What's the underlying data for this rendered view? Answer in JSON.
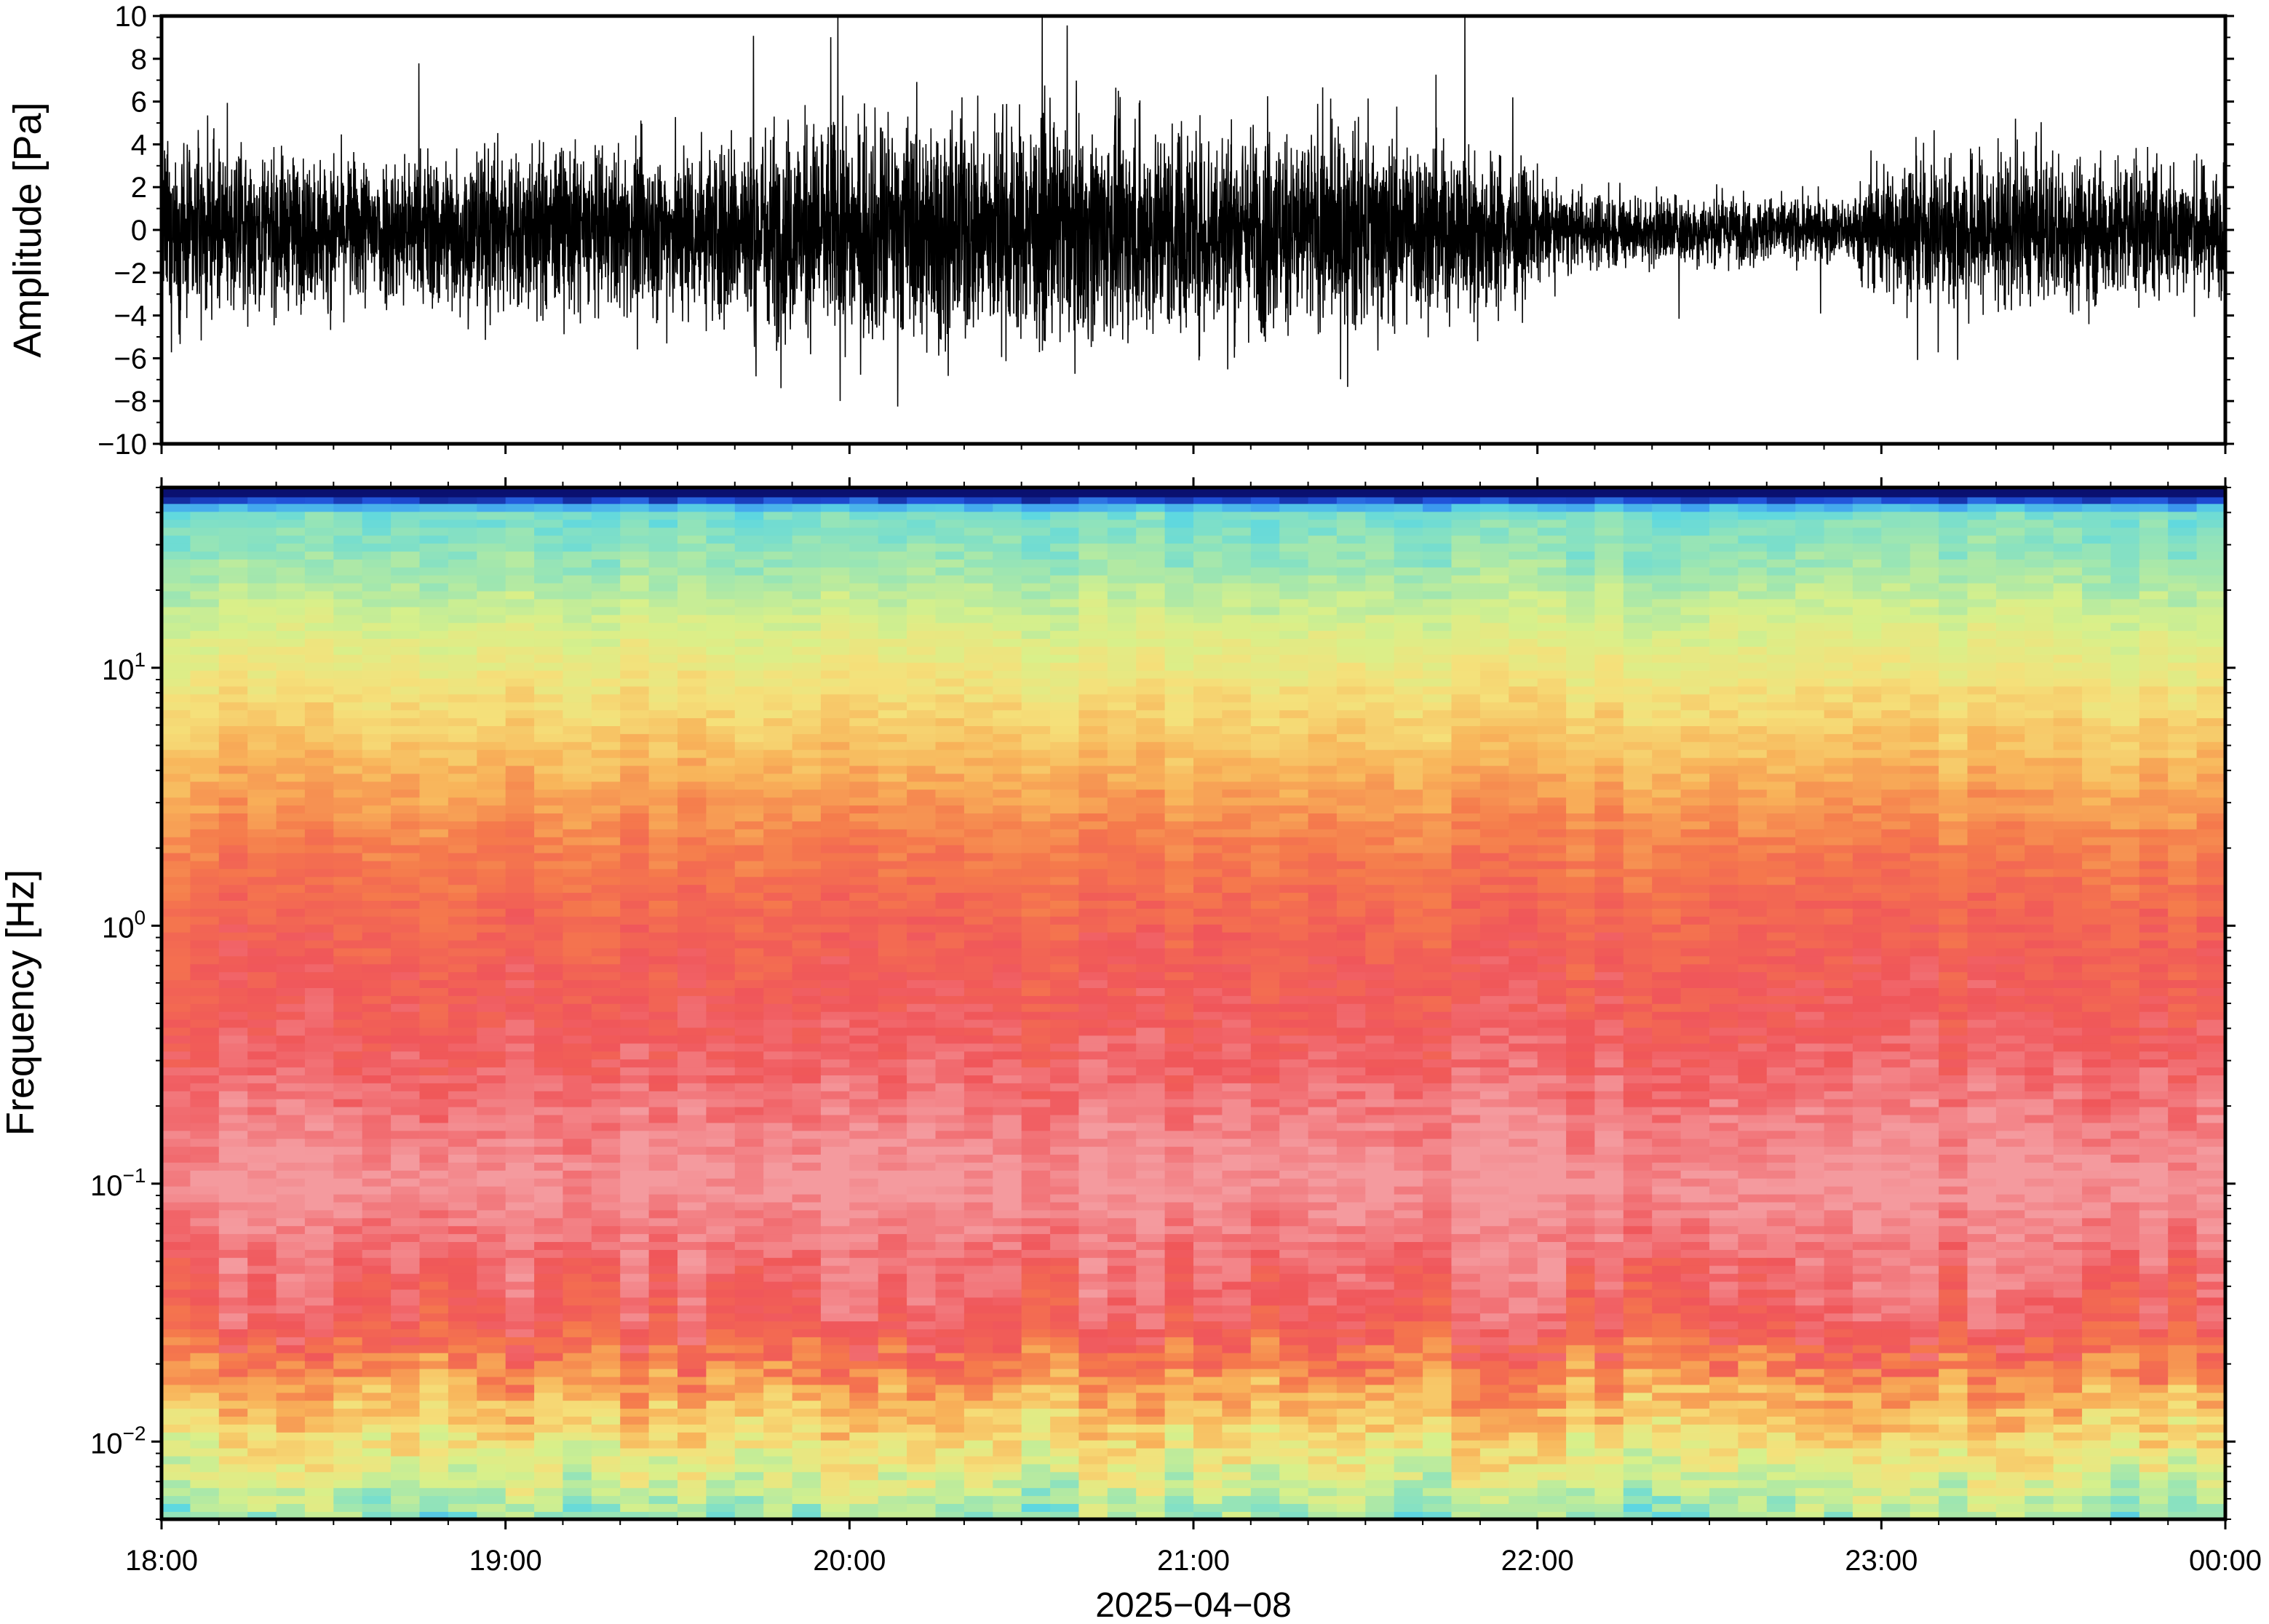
{
  "chart_data": [
    {
      "type": "line",
      "panel": "waveform",
      "ylabel": "Amplitude [Pa]",
      "ylim": [
        -10,
        10
      ],
      "yticks": [
        10,
        8,
        6,
        4,
        2,
        0,
        -2,
        -4,
        -6,
        -8,
        -10
      ],
      "ytick_labels": [
        "10",
        "8",
        "6",
        "4",
        "2",
        "0",
        "−2",
        "−4",
        "−6",
        "−8",
        "−10"
      ],
      "xlim": [
        "18:00",
        "00:00"
      ],
      "line_color": "#000000",
      "envelope": {
        "hours": [
          18.0,
          18.5,
          18.9,
          19.0,
          19.3,
          19.6,
          19.8,
          20.0,
          20.3,
          20.6,
          21.0,
          21.3,
          21.6,
          21.9,
          22.05,
          22.3,
          22.6,
          22.9,
          23.0,
          23.3,
          23.7,
          24.0
        ],
        "amplitude_pa": [
          3.5,
          3.0,
          3.5,
          3.6,
          3.3,
          3.8,
          4.5,
          4.6,
          4.7,
          4.5,
          4.4,
          4.2,
          3.9,
          3.3,
          1.6,
          1.5,
          1.4,
          1.3,
          2.8,
          3.2,
          3.0,
          2.6
        ]
      },
      "peak_amplitude_pa": 10
    },
    {
      "type": "heatmap",
      "panel": "spectrogram",
      "ylabel": "Frequency [Hz]",
      "yscale": "log",
      "ylim": [
        0.005,
        50
      ],
      "yticks": [
        0.01,
        0.1,
        1,
        10
      ],
      "ytick_labels": [
        {
          "base": "10",
          "exp": "−2"
        },
        {
          "base": "10",
          "exp": "−1"
        },
        {
          "base": "10",
          "exp": "0"
        },
        {
          "base": "10",
          "exp": "1"
        }
      ],
      "xticks": [
        "18:00",
        "19:00",
        "20:00",
        "21:00",
        "22:00",
        "23:00",
        "00:00"
      ],
      "xlabel": "2025−04−08",
      "colormap": [
        "#0a1070",
        "#1f4fd8",
        "#3fa0f0",
        "#5ed8e0",
        "#9fe6b0",
        "#d8f08a",
        "#f5e07a",
        "#f8b45a",
        "#f57a4c",
        "#f0565a",
        "#f49a9e"
      ],
      "profile": {
        "frequency_hz": [
          0.005,
          0.007,
          0.01,
          0.015,
          0.02,
          0.03,
          0.06,
          0.1,
          0.2,
          0.4,
          1,
          2,
          4,
          8,
          15,
          25,
          40,
          47
        ],
        "color_index": [
          4,
          5,
          6,
          7,
          8,
          9,
          9.5,
          10,
          9.5,
          9,
          8.6,
          8,
          7,
          6,
          5,
          4,
          3.4,
          0
        ]
      }
    }
  ]
}
